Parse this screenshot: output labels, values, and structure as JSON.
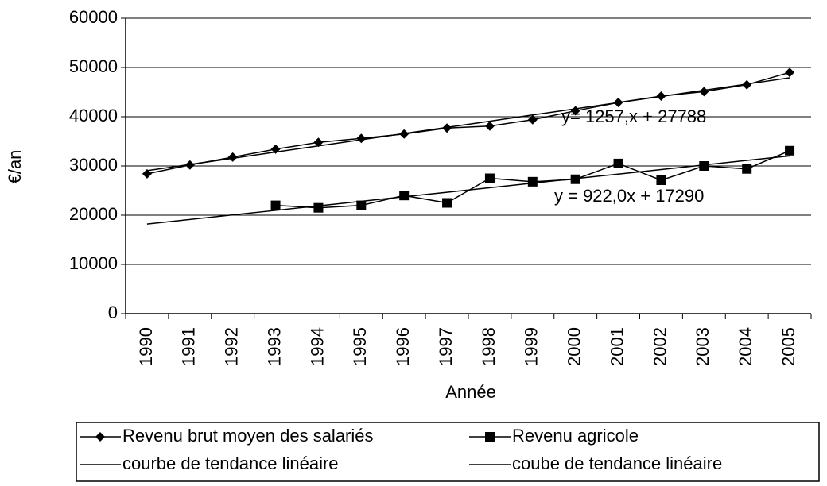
{
  "chart_data": {
    "type": "line",
    "ylabel": "€/an",
    "xlabel": "Année",
    "categories": [
      "1990",
      "1991",
      "1992",
      "1993",
      "1994",
      "1995",
      "1996",
      "1997",
      "1998",
      "1999",
      "2000",
      "2001",
      "2002",
      "2003",
      "2004",
      "2005"
    ],
    "series": [
      {
        "name": "Revenu brut moyen des salariés",
        "color": "#000000",
        "marker": "diamond",
        "values": [
          28400,
          30200,
          31800,
          33400,
          34800,
          35600,
          36500,
          37700,
          38100,
          39400,
          41200,
          42900,
          44200,
          45100,
          46500,
          49000
        ]
      },
      {
        "name": "Revenu agricole",
        "color": "#000000",
        "marker": "square",
        "values": [
          null,
          null,
          null,
          22000,
          21500,
          22000,
          24000,
          22500,
          27500,
          26800,
          27300,
          30500,
          27100,
          30000,
          29400,
          33100
        ]
      },
      {
        "name": "courbe de tendance linéaire",
        "color": "#000000",
        "marker": "none",
        "values": [
          29045,
          30302,
          31559,
          32816,
          34073,
          35330,
          36587,
          37844,
          39101,
          40358,
          41615,
          42872,
          44129,
          45386,
          46643,
          47900
        ]
      },
      {
        "name": "coube de tendance linéaire",
        "color": "#000000",
        "marker": "none",
        "values": [
          18212,
          19134,
          20056,
          20978,
          21900,
          22822,
          23744,
          24666,
          25588,
          26510,
          27432,
          28354,
          29276,
          30198,
          31120,
          32042
        ]
      }
    ],
    "annotations": [
      "y= 1257,x + 27788",
      "y = 922,0x + 17290"
    ],
    "ylim": [
      0,
      60000
    ],
    "yticks": [
      0,
      10000,
      20000,
      30000,
      40000,
      50000,
      60000
    ],
    "grid": true
  }
}
